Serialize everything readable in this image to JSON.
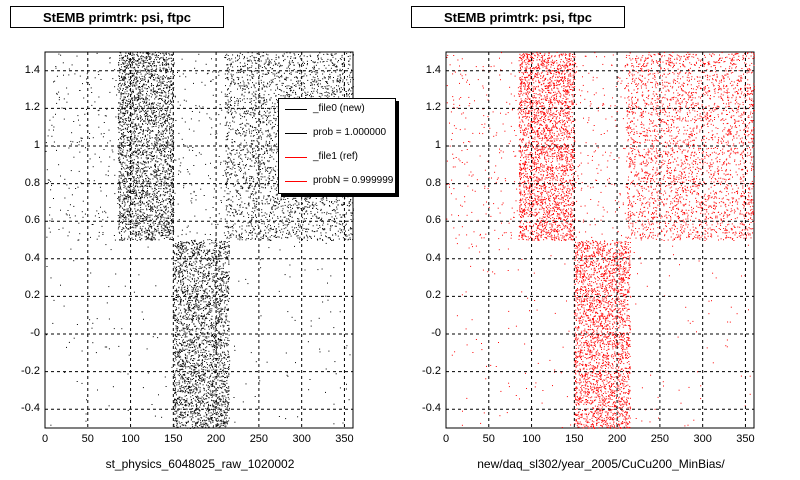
{
  "chart_data": [
    {
      "type": "scatter",
      "title": "StEMB primtrk: psi, ftpc",
      "xlabel": "st_physics_6048025_raw_1020002",
      "ylabel": "",
      "xlim": [
        0,
        360
      ],
      "ylim": [
        -0.5,
        1.5
      ],
      "xticks": [
        "0",
        "50",
        "100",
        "150",
        "200",
        "250",
        "300",
        "350"
      ],
      "yticks": [
        "-0.4",
        "-0.2",
        "-0",
        "0.2",
        "0.4",
        "0.6",
        "0.8",
        "1",
        "1.2",
        "1.4"
      ],
      "grid": true,
      "color": "#000000",
      "legend": {
        "placement": "top-right",
        "entries": [
          {
            "label": "_file0 (new)",
            "color": "#000000"
          },
          {
            "label": "prob = 1.000000",
            "color": "#000000"
          },
          {
            "label": "_file1 (ref)",
            "color": "#ff0000"
          },
          {
            "label": "probN = 0.999999",
            "color": "#ff0000"
          }
        ]
      },
      "regions": [
        {
          "x": [
            0,
            360
          ],
          "y": [
            0.5,
            1.5
          ],
          "density": "low"
        },
        {
          "x": [
            85,
            150
          ],
          "y": [
            0.5,
            1.5
          ],
          "density": "high"
        },
        {
          "x": [
            210,
            360
          ],
          "y": [
            0.5,
            1.5
          ],
          "density": "high"
        },
        {
          "x": [
            150,
            215
          ],
          "y": [
            -0.5,
            0.5
          ],
          "density": "high"
        },
        {
          "x": [
            0,
            360
          ],
          "y": [
            -0.5,
            0.5
          ],
          "density": "sparse"
        }
      ]
    },
    {
      "type": "scatter",
      "title": "StEMB primtrk: psi, ftpc",
      "xlabel": "new/daq_sl302/year_2005/CuCu200_MinBias/",
      "ylabel": "",
      "xlim": [
        0,
        360
      ],
      "ylim": [
        -0.5,
        1.5
      ],
      "xticks": [
        "0",
        "50",
        "100",
        "150",
        "200",
        "250",
        "300",
        "350"
      ],
      "yticks": [
        "-0.4",
        "-0.2",
        "-0",
        "0.2",
        "0.4",
        "0.6",
        "0.8",
        "1",
        "1.2",
        "1.4"
      ],
      "grid": true,
      "color": "#ff0000",
      "regions": [
        {
          "x": [
            0,
            360
          ],
          "y": [
            0.5,
            1.5
          ],
          "density": "low"
        },
        {
          "x": [
            85,
            150
          ],
          "y": [
            0.5,
            1.5
          ],
          "density": "high"
        },
        {
          "x": [
            210,
            360
          ],
          "y": [
            0.5,
            1.5
          ],
          "density": "high"
        },
        {
          "x": [
            150,
            215
          ],
          "y": [
            -0.5,
            0.5
          ],
          "density": "high"
        },
        {
          "x": [
            0,
            360
          ],
          "y": [
            -0.5,
            0.5
          ],
          "density": "sparse"
        }
      ]
    }
  ]
}
